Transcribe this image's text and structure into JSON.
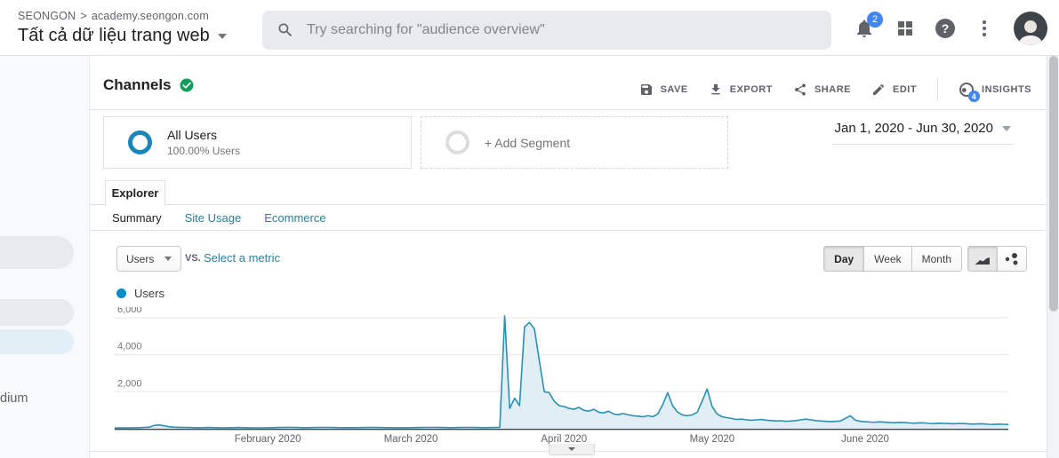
{
  "header": {
    "breadcrumb": {
      "account": "SEONGON",
      "separator": ">",
      "property": "academy.seongon.com"
    },
    "view_title": "Tất cả dữ liệu trang web",
    "search_placeholder": "Try searching for \"audience overview\"",
    "notifications_badge": "2",
    "help_glyph": "?"
  },
  "sidebar_fragment": {
    "cutoff_text": "dium"
  },
  "report": {
    "title": "Channels",
    "actions": {
      "save": "SAVE",
      "export": "EXPORT",
      "share": "SHARE",
      "edit": "EDIT",
      "insights": "INSIGHTS",
      "insights_badge": "4"
    },
    "segments": {
      "all_users_name": "All Users",
      "all_users_detail": "100.00% Users",
      "add_segment": "+ Add Segment"
    },
    "date_range": "Jan 1, 2020 - Jun 30, 2020",
    "explorer_tab": "Explorer",
    "subtabs": [
      {
        "label": "Summary",
        "active": true
      },
      {
        "label": "Site Usage",
        "active": false
      },
      {
        "label": "Ecommerce",
        "active": false
      }
    ],
    "toolbar": {
      "metric_selector": "Users",
      "vs_label": "VS.",
      "select_metric_label": "Select a metric",
      "granularity": [
        "Day",
        "Week",
        "Month"
      ],
      "granularity_active": "Day"
    }
  },
  "colors": {
    "accent_blue": "#4285f4",
    "verified_green": "#0f9d58",
    "link_teal": "#2e7d9e",
    "segment_ring_blue": "#1a87b8"
  },
  "chart_data": {
    "type": "area",
    "title": "Users",
    "legend": [
      {
        "label": "Users",
        "color": "#058dc7"
      }
    ],
    "line_color": "#2b90b3",
    "fill_color": "#e0eef6",
    "x_start": "Jan 1, 2020",
    "x_end": "Jun 30, 2020",
    "x_unit": "day",
    "x_tick_labels": [
      "February 2020",
      "March 2020",
      "April 2020",
      "May 2020",
      "June 2020"
    ],
    "x_tick_day_index": [
      31,
      60,
      91,
      121,
      152
    ],
    "y_ticks": [
      2000,
      4000,
      6000
    ],
    "y_tick_labels": [
      "2,000",
      "4,000",
      "6,000"
    ],
    "ylim": [
      0,
      6500
    ],
    "grid": true,
    "legend_position": "top-left",
    "values": [
      40,
      45,
      50,
      45,
      55,
      60,
      70,
      85,
      180,
      200,
      160,
      110,
      85,
      75,
      70,
      65,
      60,
      55,
      60,
      65,
      60,
      55,
      50,
      55,
      60,
      65,
      60,
      55,
      50,
      48,
      50,
      55,
      60,
      65,
      70,
      75,
      70,
      65,
      60,
      58,
      62,
      66,
      70,
      72,
      68,
      64,
      60,
      58,
      56,
      60,
      64,
      68,
      72,
      68,
      64,
      60,
      56,
      54,
      52,
      55,
      58,
      62,
      66,
      70,
      74,
      70,
      66,
      62,
      60,
      64,
      68,
      72,
      70,
      66,
      62,
      60,
      64,
      68,
      75,
      6100,
      1100,
      1650,
      1250,
      5500,
      5750,
      5400,
      3700,
      2000,
      1950,
      1500,
      1250,
      1200,
      1100,
      1050,
      1150,
      1000,
      950,
      1050,
      900,
      850,
      950,
      800,
      760,
      820,
      750,
      700,
      680,
      650,
      700,
      650,
      800,
      1300,
      1950,
      1250,
      900,
      750,
      700,
      750,
      900,
      1500,
      2150,
      1200,
      800,
      650,
      600,
      550,
      500,
      520,
      480,
      460,
      480,
      500,
      460,
      440,
      420,
      430,
      400,
      420,
      440,
      480,
      520,
      480,
      440,
      420,
      400,
      380,
      400,
      420,
      560,
      700,
      460,
      400,
      380,
      360,
      350,
      370,
      350,
      330,
      320,
      340,
      330,
      310,
      300,
      320,
      310,
      290,
      280,
      300,
      290,
      280,
      270,
      290,
      280,
      260,
      250,
      270,
      260,
      240,
      230,
      250,
      240,
      230
    ]
  }
}
